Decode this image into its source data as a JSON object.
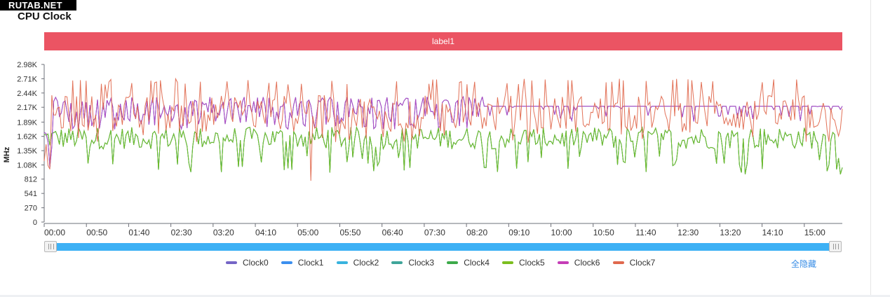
{
  "watermark_tag": "RUTAB.NET",
  "title": "CPU Clock",
  "label_band": "label1",
  "hide_all": "全隐藏",
  "chart_data": {
    "type": "line",
    "ylabel": "MHz",
    "y_ticks": [
      "0",
      "270",
      "541",
      "812",
      "1.08K",
      "1.35K",
      "1.62K",
      "1.89K",
      "2.17K",
      "2.44K",
      "2.71K",
      "2.98K"
    ],
    "y_tick_values": [
      0,
      270,
      541,
      812,
      1080,
      1350,
      1620,
      1890,
      2170,
      2440,
      2710,
      2980
    ],
    "ylim": [
      0,
      2980
    ],
    "x_ticks": [
      "00:00",
      "00:50",
      "01:40",
      "02:30",
      "03:20",
      "04:10",
      "05:00",
      "05:50",
      "06:40",
      "07:30",
      "08:20",
      "09:10",
      "10:00",
      "10:50",
      "11:40",
      "12:30",
      "13:20",
      "14:10",
      "15:00"
    ],
    "x_tick_minutes": [
      0,
      50,
      100,
      150,
      200,
      250,
      300,
      350,
      400,
      450,
      500,
      550,
      600,
      650,
      700,
      750,
      800,
      850,
      900
    ],
    "xlim_minutes": [
      0,
      945
    ],
    "grid": false,
    "legend_position": "bottom",
    "series": [
      {
        "name": "Clock0",
        "color": "#7565c6",
        "pattern": "upper",
        "approx_range": [
          1700,
          2200
        ]
      },
      {
        "name": "Clock1",
        "color": "#3b8fef",
        "pattern": "upper",
        "approx_range": [
          1700,
          2200
        ]
      },
      {
        "name": "Clock2",
        "color": "#38b3de",
        "pattern": "lower",
        "approx_range": [
          810,
          1790
        ]
      },
      {
        "name": "Clock3",
        "color": "#3fa59a",
        "pattern": "lower",
        "approx_range": [
          810,
          1790
        ]
      },
      {
        "name": "Clock4",
        "color": "#3daa4a",
        "pattern": "lower",
        "approx_range": [
          810,
          1790
        ]
      },
      {
        "name": "Clock5",
        "color": "#7cbe1f",
        "pattern": "lower",
        "approx_range": [
          810,
          1790
        ]
      },
      {
        "name": "Clock6",
        "color": "#c53db7",
        "pattern": "upper",
        "approx_range": [
          1700,
          2200
        ]
      },
      {
        "name": "Clock7",
        "color": "#e0694e",
        "pattern": "spiky",
        "approx_range": [
          780,
          2710
        ]
      }
    ]
  }
}
